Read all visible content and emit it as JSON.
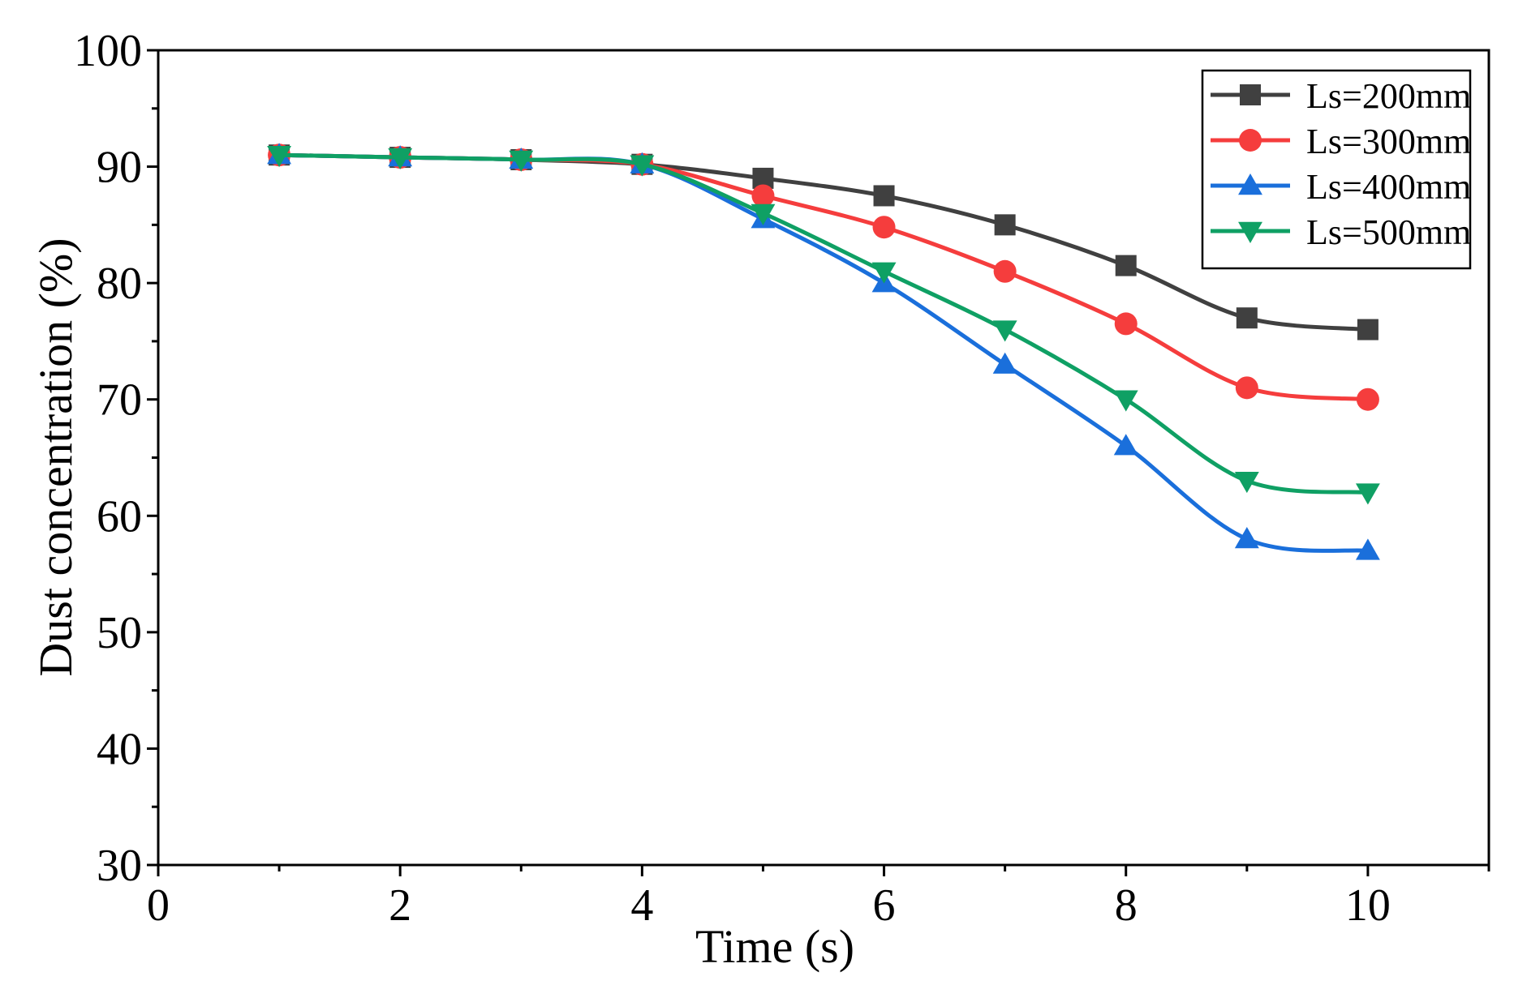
{
  "chart_data": {
    "type": "line",
    "title": "",
    "xlabel": "Time (s)",
    "ylabel": "Dust concentration (%)",
    "xlim": [
      0,
      11
    ],
    "ylim": [
      30,
      100
    ],
    "xticks": [
      0,
      2,
      4,
      6,
      8,
      10
    ],
    "yticks": [
      30,
      40,
      50,
      60,
      70,
      80,
      90,
      100
    ],
    "grid": false,
    "legend_position": "top-right",
    "x": [
      1,
      2,
      3,
      4,
      5,
      6,
      7,
      8,
      9,
      10
    ],
    "series": [
      {
        "name": "Ls=200mm",
        "color": "#404040",
        "marker": "square",
        "values": [
          91,
          90.8,
          90.6,
          90.2,
          89,
          87.5,
          85,
          81.5,
          77,
          76
        ]
      },
      {
        "name": "Ls=300mm",
        "color": "#f53d3d",
        "marker": "circle",
        "values": [
          91,
          90.8,
          90.6,
          90.2,
          87.5,
          84.8,
          81,
          76.5,
          71,
          70
        ]
      },
      {
        "name": "Ls=400mm",
        "color": "#1a6fdb",
        "marker": "triangle-up",
        "values": [
          91,
          90.8,
          90.6,
          90.2,
          85.5,
          80,
          73,
          66,
          58,
          57
        ]
      },
      {
        "name": "Ls=500mm",
        "color": "#0fa064",
        "marker": "triangle-down",
        "values": [
          91,
          90.8,
          90.6,
          90.2,
          86,
          81,
          76,
          70,
          63,
          62
        ]
      }
    ]
  }
}
